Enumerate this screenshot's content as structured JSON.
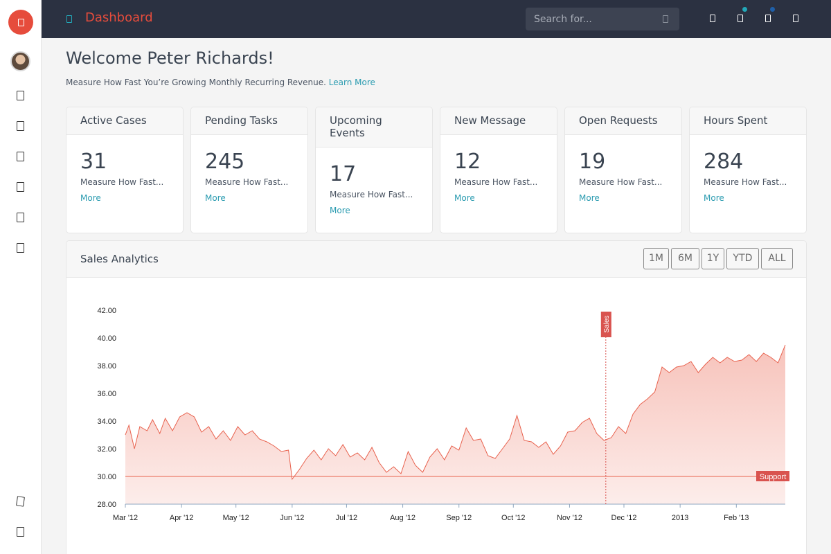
{
  "topbar": {
    "brand": "Dashboard",
    "search_placeholder": "Search for...",
    "dot_colors": [
      "#23a8b8",
      "#1f5fa8"
    ]
  },
  "sidebar": {
    "icons": [
      "logo-icon",
      "user-avatar",
      "page-icon",
      "page-icon",
      "page-icon",
      "page-icon",
      "page-icon",
      "page-icon",
      "page-icon",
      "page-icon"
    ]
  },
  "welcome": {
    "title": "Welcome Peter Richards!",
    "subtitle": "Measure How Fast You’re Growing Monthly Recurring Revenue.",
    "learn_more": "Learn More"
  },
  "cards": [
    {
      "title": "Active Cases",
      "value": "31",
      "desc": "Measure How Fast...",
      "more": "More"
    },
    {
      "title": "Pending Tasks",
      "value": "245",
      "desc": "Measure How Fast...",
      "more": "More"
    },
    {
      "title": "Upcoming Events",
      "value": "17",
      "desc": "Measure How Fast...",
      "more": "More"
    },
    {
      "title": "New Message",
      "value": "12",
      "desc": "Measure How Fast...",
      "more": "More"
    },
    {
      "title": "Open Requests",
      "value": "19",
      "desc": "Measure How Fast...",
      "more": "More"
    },
    {
      "title": "Hours Spent",
      "value": "284",
      "desc": "Measure How Fast...",
      "more": "More"
    }
  ],
  "analytics": {
    "title": "Sales Analytics",
    "ranges": [
      "1M",
      "6M",
      "1Y",
      "YTD",
      "ALL"
    ]
  },
  "chart_data": {
    "type": "area",
    "title": "",
    "xlabel": "",
    "ylabel": "",
    "ylim": [
      28,
      42
    ],
    "y_ticks": [
      "42.00",
      "40.00",
      "38.00",
      "36.00",
      "34.00",
      "32.00",
      "30.00",
      "28.00"
    ],
    "x_ticks": [
      "Mar '12",
      "Apr '12",
      "May '12",
      "Jun '12",
      "Jul '12",
      "Aug '12",
      "Sep '12",
      "Oct '12",
      "Nov '12",
      "Dec '12",
      "2013",
      "Feb '13"
    ],
    "x_range": [
      "2012-03-01",
      "2013-02-28"
    ],
    "line_color": "#e8614d",
    "fill_color": "#f7c3bb",
    "series": [
      {
        "points": [
          [
            "2012-03-01",
            33.0
          ],
          [
            "2012-03-03",
            33.7
          ],
          [
            "2012-03-06",
            32.0
          ],
          [
            "2012-03-09",
            33.6
          ],
          [
            "2012-03-13",
            33.3
          ],
          [
            "2012-03-16",
            34.1
          ],
          [
            "2012-03-20",
            33.1
          ],
          [
            "2012-03-23",
            34.2
          ],
          [
            "2012-03-27",
            33.3
          ],
          [
            "2012-03-31",
            34.3
          ],
          [
            "2012-04-04",
            34.6
          ],
          [
            "2012-04-08",
            34.3
          ],
          [
            "2012-04-12",
            33.2
          ],
          [
            "2012-04-16",
            33.6
          ],
          [
            "2012-04-20",
            32.7
          ],
          [
            "2012-04-24",
            33.3
          ],
          [
            "2012-04-28",
            32.6
          ],
          [
            "2012-05-02",
            33.6
          ],
          [
            "2012-05-06",
            33.0
          ],
          [
            "2012-05-10",
            33.3
          ],
          [
            "2012-05-14",
            32.7
          ],
          [
            "2012-05-18",
            32.5
          ],
          [
            "2012-05-22",
            32.2
          ],
          [
            "2012-05-26",
            31.8
          ],
          [
            "2012-05-30",
            31.9
          ],
          [
            "2012-06-01",
            29.8
          ],
          [
            "2012-06-05",
            30.5
          ],
          [
            "2012-06-09",
            31.3
          ],
          [
            "2012-06-13",
            31.9
          ],
          [
            "2012-06-17",
            31.2
          ],
          [
            "2012-06-21",
            32.0
          ],
          [
            "2012-06-25",
            31.5
          ],
          [
            "2012-06-29",
            32.3
          ],
          [
            "2012-07-03",
            31.4
          ],
          [
            "2012-07-07",
            31.7
          ],
          [
            "2012-07-11",
            31.2
          ],
          [
            "2012-07-15",
            32.1
          ],
          [
            "2012-07-19",
            31.0
          ],
          [
            "2012-07-23",
            30.3
          ],
          [
            "2012-07-27",
            30.7
          ],
          [
            "2012-07-31",
            30.2
          ],
          [
            "2012-08-04",
            31.8
          ],
          [
            "2012-08-08",
            30.8
          ],
          [
            "2012-08-12",
            30.3
          ],
          [
            "2012-08-16",
            31.4
          ],
          [
            "2012-08-20",
            32.0
          ],
          [
            "2012-08-24",
            31.2
          ],
          [
            "2012-08-28",
            32.2
          ],
          [
            "2012-09-01",
            31.9
          ],
          [
            "2012-09-05",
            33.5
          ],
          [
            "2012-09-09",
            32.6
          ],
          [
            "2012-09-13",
            32.7
          ],
          [
            "2012-09-17",
            31.5
          ],
          [
            "2012-09-21",
            31.3
          ],
          [
            "2012-09-25",
            32.0
          ],
          [
            "2012-09-29",
            32.7
          ],
          [
            "2012-10-03",
            34.4
          ],
          [
            "2012-10-07",
            32.6
          ],
          [
            "2012-10-11",
            32.5
          ],
          [
            "2012-10-15",
            32.1
          ],
          [
            "2012-10-19",
            32.5
          ],
          [
            "2012-10-23",
            31.6
          ],
          [
            "2012-10-27",
            32.2
          ],
          [
            "2012-10-31",
            33.2
          ],
          [
            "2012-11-04",
            33.3
          ],
          [
            "2012-11-08",
            33.9
          ],
          [
            "2012-11-12",
            34.2
          ],
          [
            "2012-11-16",
            33.1
          ],
          [
            "2012-11-20",
            32.6
          ],
          [
            "2012-11-24",
            32.8
          ],
          [
            "2012-11-28",
            33.6
          ],
          [
            "2012-12-02",
            33.1
          ],
          [
            "2012-12-06",
            34.5
          ],
          [
            "2012-12-10",
            35.2
          ],
          [
            "2012-12-14",
            35.6
          ],
          [
            "2012-12-18",
            36.1
          ],
          [
            "2012-12-22",
            37.9
          ],
          [
            "2012-12-26",
            37.5
          ],
          [
            "2012-12-30",
            37.9
          ],
          [
            "2013-01-03",
            38.0
          ],
          [
            "2013-01-07",
            38.3
          ],
          [
            "2013-01-11",
            37.5
          ],
          [
            "2013-01-15",
            38.1
          ],
          [
            "2013-01-19",
            38.6
          ],
          [
            "2013-01-23",
            38.2
          ],
          [
            "2013-01-27",
            38.6
          ],
          [
            "2013-01-31",
            38.3
          ],
          [
            "2013-02-04",
            38.4
          ],
          [
            "2013-02-08",
            38.8
          ],
          [
            "2013-02-12",
            38.3
          ],
          [
            "2013-02-16",
            38.9
          ],
          [
            "2013-02-20",
            38.6
          ],
          [
            "2013-02-24",
            38.2
          ],
          [
            "2013-02-28",
            39.5
          ]
        ]
      }
    ],
    "annotations": {
      "flag": {
        "label": "Sales",
        "date": "2012-11-21",
        "color": "#d9534f"
      },
      "plot_line": {
        "label": "Support",
        "y": 30.0,
        "color": "#d9534f"
      }
    }
  }
}
